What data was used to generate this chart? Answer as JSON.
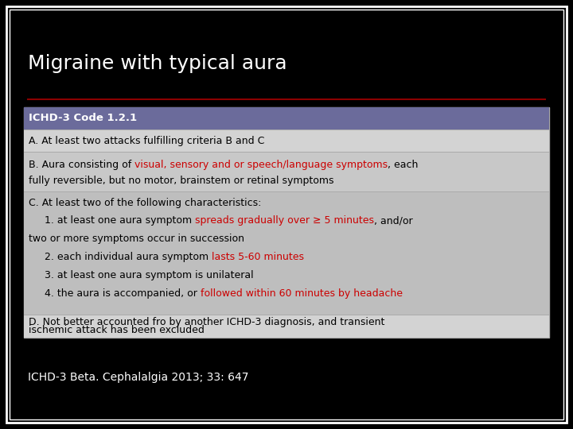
{
  "title": "Migraine with typical aura",
  "bg_color": "#000000",
  "title_color": "#ffffff",
  "border_color": "#ffffff",
  "header_bg": "#6b6b9b",
  "header_text": "ICHD-3 Code 1.2.1",
  "header_text_color": "#ffffff",
  "separator_color": "#8b0000",
  "footer_text": "ICHD-3 Beta. Cephalalgia 2013; 33: 647",
  "footer_color": "#ffffff",
  "red_color": "#cc0000",
  "black_color": "#000000",
  "row_A_bg": "#d3d3d3",
  "row_B_bg": "#c8c8c8",
  "row_C_bg": "#bebebe",
  "row_D_bg": "#d3d3d3",
  "table_border_color": "#aaaaaa",
  "c_lines": [
    [
      {
        "text": "C. At least two of the following characteristics:",
        "color": "#000000"
      }
    ],
    [
      {
        "text": "     1. at least one aura symptom ",
        "color": "#000000"
      },
      {
        "text": "spreads gradually over ≥ 5 minutes",
        "color": "#cc0000"
      },
      {
        "text": ", and/or",
        "color": "#000000"
      }
    ],
    [
      {
        "text": "two or more symptoms occur in succession",
        "color": "#000000"
      }
    ],
    [
      {
        "text": "     2. each individual aura symptom ",
        "color": "#000000"
      },
      {
        "text": "lasts 5-60 minutes",
        "color": "#cc0000"
      }
    ],
    [
      {
        "text": "     3. at least one aura symptom is unilateral",
        "color": "#000000"
      }
    ],
    [
      {
        "text": "     4. the aura is accompanied, or ",
        "color": "#000000"
      },
      {
        "text": "followed within 60 minutes by headache",
        "color": "#cc0000"
      }
    ]
  ],
  "b_line1_segs": [
    {
      "text": "B. Aura consisting of ",
      "color": "#000000"
    },
    {
      "text": "visual, sensory and or speech/language symptoms",
      "color": "#cc0000"
    },
    {
      "text": ", each",
      "color": "#000000"
    }
  ],
  "b_line2": "fully reversible, but no motor, brainstem or retinal symptoms"
}
